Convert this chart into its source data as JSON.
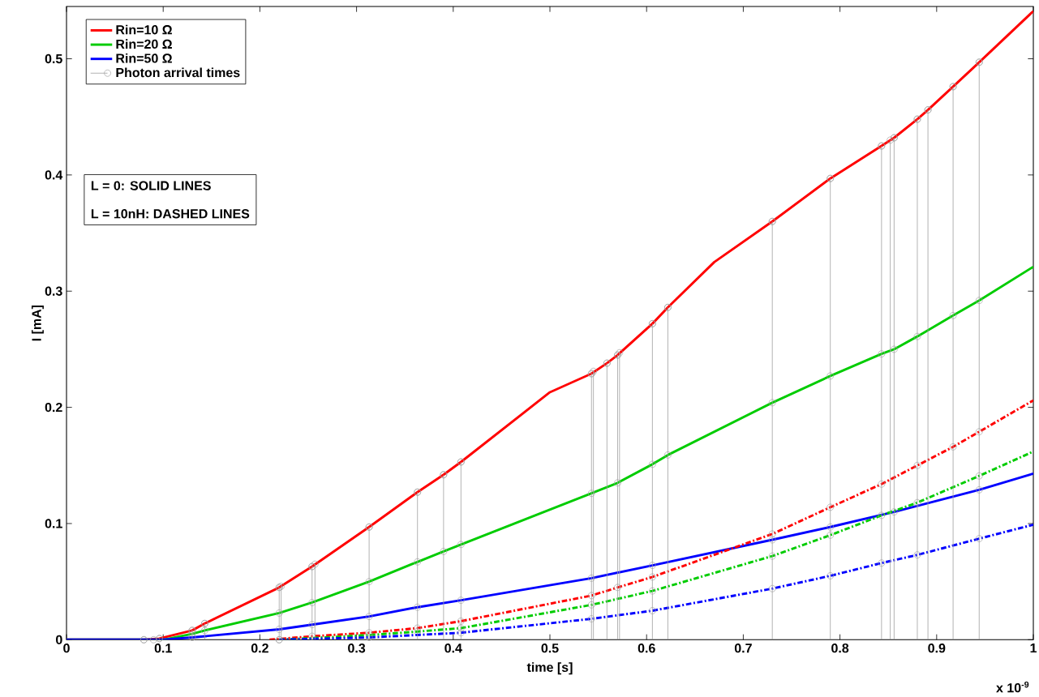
{
  "chart_data": {
    "type": "line",
    "xlabel": "time [s]",
    "ylabel": "I [mA]",
    "xlim": [
      0,
      1
    ],
    "ylim": [
      0,
      0.545
    ],
    "xticks": [
      0,
      0.1,
      0.2,
      0.3,
      0.4,
      0.5,
      0.6,
      0.7,
      0.8,
      0.9,
      1
    ],
    "yticks": [
      0,
      0.1,
      0.2,
      0.3,
      0.4,
      0.5
    ],
    "legend": "top left",
    "annotations": [
      "L = 0: SOLID LINES",
      "L = 10nH: DASHED LINES",
      "x 10$^{-9}$"
    ],
    "series": [
      {
        "name": "Rin=10 Ω",
        "color": "#ff0000",
        "line_style": "solid",
        "marker": "circle",
        "x": [
          0,
          0.08,
          0.096,
          0.13,
          0.143,
          0.22,
          0.254,
          0.313,
          0.363,
          0.39,
          0.408,
          0.5,
          0.543,
          0.559,
          0.57,
          0.606,
          0.622,
          0.67,
          0.73,
          0.79,
          0.843,
          0.856,
          0.88,
          0.891,
          0.917,
          0.944,
          1
        ],
        "values": [
          0,
          0,
          0.001,
          0.008,
          0.014,
          0.045,
          0.063,
          0.097,
          0.127,
          0.142,
          0.153,
          0.213,
          0.229,
          0.238,
          0.245,
          0.272,
          0.286,
          0.325,
          0.36,
          0.397,
          0.425,
          0.432,
          0.448,
          0.456,
          0.476,
          0.497,
          0.541
        ]
      },
      {
        "name": "Rin=20 Ω",
        "color": "#00cc00",
        "line_style": "solid",
        "marker": "circle",
        "x": [
          0,
          0.1,
          0.13,
          0.143,
          0.22,
          0.254,
          0.313,
          0.363,
          0.39,
          0.408,
          0.543,
          0.57,
          0.606,
          0.622,
          0.73,
          0.79,
          0.843,
          0.856,
          0.88,
          0.917,
          0.944,
          1
        ],
        "values": [
          0,
          0,
          0.005,
          0.008,
          0.023,
          0.032,
          0.05,
          0.067,
          0.076,
          0.082,
          0.126,
          0.135,
          0.151,
          0.159,
          0.204,
          0.227,
          0.246,
          0.25,
          0.261,
          0.279,
          0.292,
          0.321
        ]
      },
      {
        "name": "Rin=50 Ω",
        "color": "#0000ff",
        "line_style": "solid",
        "marker": "circle",
        "x": [
          0,
          0.1,
          0.13,
          0.22,
          0.254,
          0.313,
          0.363,
          0.408,
          0.543,
          0.606,
          0.73,
          0.79,
          0.856,
          0.944,
          1
        ],
        "values": [
          0,
          0,
          0.002,
          0.009,
          0.013,
          0.02,
          0.028,
          0.034,
          0.053,
          0.064,
          0.086,
          0.097,
          0.11,
          0.129,
          0.143
        ]
      },
      {
        "color": "#ff0000",
        "line_style": "dashed",
        "marker": "circle",
        "x": [
          0.21,
          0.254,
          0.313,
          0.363,
          0.408,
          0.543,
          0.57,
          0.606,
          0.73,
          0.79,
          0.843,
          0.88,
          0.917,
          0.944,
          1
        ],
        "values": [
          0,
          0.003,
          0.006,
          0.01,
          0.016,
          0.038,
          0.045,
          0.054,
          0.091,
          0.114,
          0.134,
          0.15,
          0.166,
          0.179,
          0.206
        ]
      },
      {
        "color": "#00cc00",
        "line_style": "dashed",
        "marker": "circle",
        "x": [
          0.22,
          0.313,
          0.363,
          0.408,
          0.543,
          0.606,
          0.73,
          0.79,
          0.843,
          0.88,
          0.944,
          1
        ],
        "values": [
          0,
          0.004,
          0.007,
          0.01,
          0.03,
          0.042,
          0.072,
          0.09,
          0.107,
          0.118,
          0.141,
          0.162
        ]
      },
      {
        "color": "#0000ff",
        "line_style": "dashed",
        "marker": "circle",
        "x": [
          0.22,
          0.313,
          0.408,
          0.543,
          0.606,
          0.73,
          0.79,
          0.843,
          0.88,
          0.944,
          1
        ],
        "values": [
          0,
          0.002,
          0.006,
          0.018,
          0.025,
          0.044,
          0.055,
          0.066,
          0.073,
          0.087,
          0.099
        ]
      },
      {
        "type": "lollipop",
        "name": "Photon arrival times",
        "color": "#a0a0a0",
        "marker": "circle",
        "x": [
          0.08,
          0.09,
          0.096,
          0.13,
          0.143,
          0.22,
          0.222,
          0.254,
          0.257,
          0.313,
          0.363,
          0.39,
          0.408,
          0.543,
          0.545,
          0.559,
          0.57,
          0.572,
          0.606,
          0.622,
          0.73,
          0.79,
          0.843,
          0.852,
          0.856,
          0.88,
          0.891,
          0.917,
          0.944
        ],
        "values": [
          0,
          0,
          0.001,
          0.008,
          0.014,
          0.045,
          0.046,
          0.063,
          0.065,
          0.097,
          0.127,
          0.142,
          0.153,
          0.229,
          0.231,
          0.238,
          0.245,
          0.247,
          0.272,
          0.286,
          0.36,
          0.397,
          0.425,
          0.43,
          0.432,
          0.448,
          0.456,
          0.476,
          0.497
        ]
      }
    ]
  }
}
